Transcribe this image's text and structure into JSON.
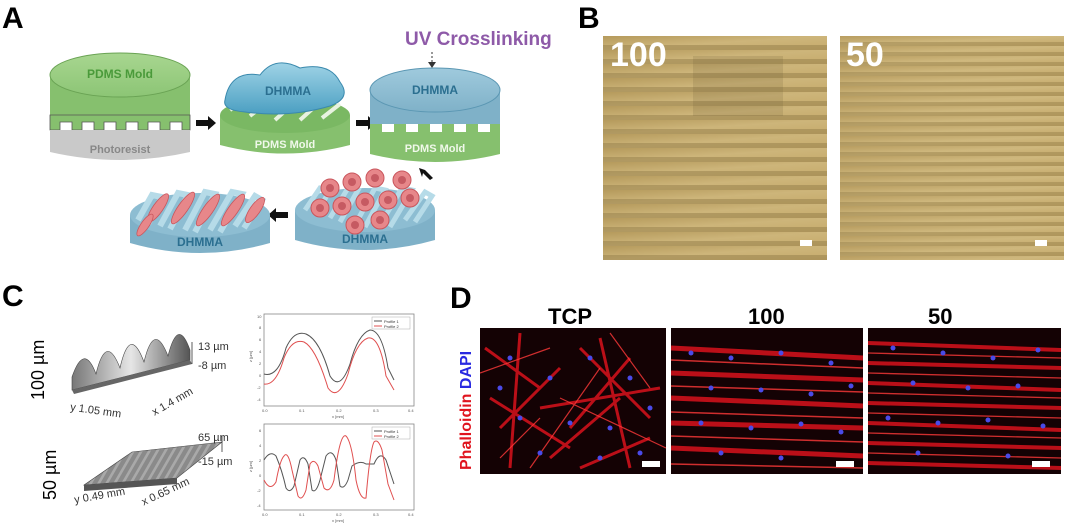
{
  "panels": {
    "a": "A",
    "b": "B",
    "c": "C",
    "d": "D"
  },
  "schematic": {
    "uv_label": "UV Crosslinking",
    "mold_top_label": "PDMS Mold",
    "photoresist_label": "Photoresist",
    "dhmma_label": "DHMMA",
    "pdms_label": "PDMS Mold",
    "colors": {
      "green": "#93c97d",
      "blue": "#8ab9cf",
      "uv": "#8e5aa8",
      "cell": "#e7878a"
    }
  },
  "brightfield": {
    "left_label": "100",
    "right_label": "50"
  },
  "profilometry": {
    "row1": {
      "label": "100 µm",
      "z_max": "13 µm",
      "z_min": "-8 µm",
      "y_extent": "y 1.05 mm",
      "x_extent": "x 1.4 mm"
    },
    "row2": {
      "label": "50 µm",
      "z_max": "65 µm",
      "z_min": "-15 µm",
      "y_extent": "y 0.49 mm",
      "x_extent": "x 0.65 mm"
    },
    "plot1": {
      "legend": [
        "Profile 1",
        "Profile 2"
      ],
      "xlabel": "x [mm]",
      "ylabel": "z [µm]",
      "xticks": [
        "0.0",
        "0.1",
        "0.2",
        "0.3",
        "0.4"
      ],
      "yticks": [
        "10",
        "8",
        "6",
        "4",
        "2",
        "0",
        "-2",
        "-4"
      ]
    },
    "plot2": {
      "legend": [
        "Profile 1",
        "Profile 2"
      ],
      "xlabel": "x [mm]",
      "ylabel": "z [µm]",
      "xticks": [
        "0.0",
        "0.1",
        "0.2",
        "0.3",
        "0.4"
      ],
      "yticks": [
        "6",
        "4",
        "2",
        "0",
        "-2",
        "-4"
      ]
    }
  },
  "fluorescence": {
    "stain_red": "Phalloidin",
    "stain_blue": "DAPI",
    "labels": [
      "TCP",
      "100",
      "50"
    ]
  }
}
